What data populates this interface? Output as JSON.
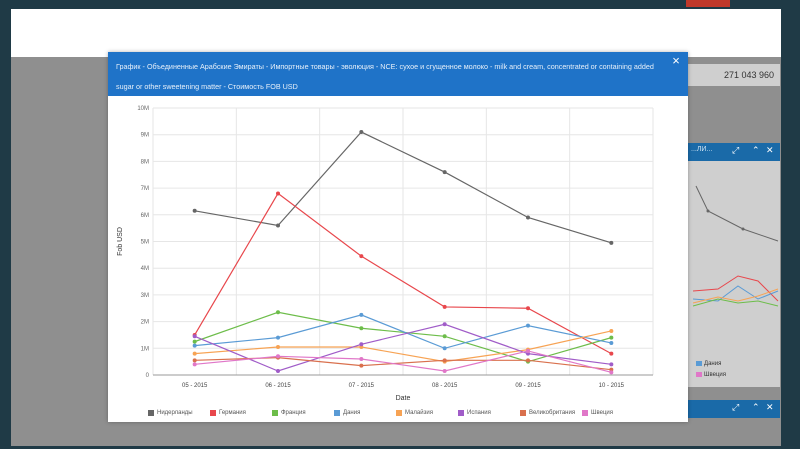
{
  "background": {
    "total_value": "271 043 960",
    "widget_title": "...ЛИ...",
    "legend_visible": [
      "Дания",
      "Швеция"
    ]
  },
  "dialog": {
    "title": "График - Объединенные Арабские Эмираты - Импортные товары - эволюция - NCE: сухое и сгущенное молоко - milk and cream, concentrated or containing added sugar or other sweetening matter - Стоимость FOB USD",
    "close_label": "×"
  },
  "chart_data": {
    "type": "line",
    "title": "",
    "xlabel": "Date",
    "ylabel": "Fob USD",
    "categories": [
      "05 - 2015",
      "06 - 2015",
      "07 - 2015",
      "08 - 2015",
      "09 - 2015",
      "10 - 2015"
    ],
    "yticks": [
      "0",
      "1M",
      "2M",
      "3M",
      "4M",
      "5M",
      "6M",
      "7M",
      "8M",
      "9M",
      "10M"
    ],
    "ylim": [
      0,
      10
    ],
    "grid": true,
    "legend_position": "bottom",
    "series": [
      {
        "name": "Нидерланды",
        "color": "#666666",
        "values": [
          6.15,
          5.6,
          9.1,
          7.6,
          5.9,
          4.95
        ]
      },
      {
        "name": "Германия",
        "color": "#e8474c",
        "values": [
          1.5,
          6.8,
          4.45,
          2.55,
          2.5,
          0.8
        ]
      },
      {
        "name": "Франция",
        "color": "#6dbd4a",
        "values": [
          1.25,
          2.35,
          1.75,
          1.45,
          0.5,
          1.4
        ]
      },
      {
        "name": "Дания",
        "color": "#5a9bd5",
        "values": [
          1.1,
          1.4,
          2.25,
          1.0,
          1.85,
          1.2
        ]
      },
      {
        "name": "Малайзия",
        "color": "#f7a354",
        "values": [
          0.8,
          1.05,
          1.05,
          0.5,
          0.95,
          1.65
        ]
      },
      {
        "name": "Испания",
        "color": "#a05cc8",
        "values": [
          1.45,
          0.15,
          1.15,
          1.9,
          0.8,
          0.4
        ]
      },
      {
        "name": "Великобритания",
        "color": "#d9704d",
        "values": [
          0.55,
          0.65,
          0.35,
          0.55,
          0.55,
          0.2
        ]
      },
      {
        "name": "Швеция",
        "color": "#e077c8",
        "values": [
          0.4,
          0.7,
          0.6,
          0.15,
          0.9,
          0.1
        ]
      }
    ]
  }
}
